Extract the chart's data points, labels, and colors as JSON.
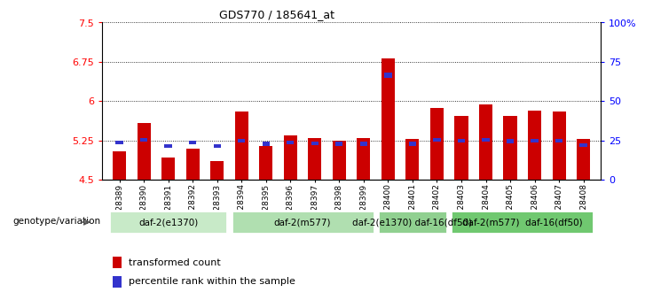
{
  "title": "GDS770 / 185641_at",
  "samples": [
    "GSM28389",
    "GSM28390",
    "GSM28391",
    "GSM28392",
    "GSM28393",
    "GSM28394",
    "GSM28395",
    "GSM28396",
    "GSM28397",
    "GSM28398",
    "GSM28399",
    "GSM28400",
    "GSM28401",
    "GSM28402",
    "GSM28403",
    "GSM28404",
    "GSM28405",
    "GSM28406",
    "GSM28407",
    "GSM28408"
  ],
  "red_values": [
    5.05,
    5.58,
    4.92,
    5.1,
    4.85,
    5.8,
    5.15,
    5.35,
    5.3,
    5.25,
    5.3,
    6.82,
    5.28,
    5.87,
    5.72,
    5.93,
    5.72,
    5.82,
    5.8,
    5.27
  ],
  "blue_top": [
    5.25,
    5.3,
    5.18,
    5.25,
    5.18,
    5.28,
    5.22,
    5.24,
    5.23,
    5.22,
    5.22,
    6.55,
    5.22,
    5.3,
    5.28,
    5.3,
    5.27,
    5.28,
    5.28,
    5.2
  ],
  "blue_height": [
    0.07,
    0.07,
    0.07,
    0.07,
    0.07,
    0.07,
    0.07,
    0.07,
    0.07,
    0.07,
    0.07,
    0.1,
    0.07,
    0.07,
    0.07,
    0.07,
    0.07,
    0.07,
    0.07,
    0.07
  ],
  "ymin": 4.5,
  "ymax": 7.5,
  "yticks": [
    4.5,
    5.25,
    6.0,
    6.75,
    7.5
  ],
  "ytick_labels": [
    "4.5",
    "5.25",
    "6",
    "6.75",
    "7.5"
  ],
  "right_yticks": [
    0,
    25,
    50,
    75,
    100
  ],
  "right_ytick_labels": [
    "0",
    "25",
    "50",
    "75",
    "100%"
  ],
  "groups": [
    {
      "label": "daf-2(e1370)",
      "start": 0,
      "end": 4,
      "color": "#c8eac8"
    },
    {
      "label": "daf-2(m577)",
      "start": 5,
      "end": 10,
      "color": "#b0dfb0"
    },
    {
      "label": "daf-2(e1370) daf-16(df50)",
      "start": 11,
      "end": 13,
      "color": "#90d090"
    },
    {
      "label": "daf-2(m577)  daf-16(df50)",
      "start": 14,
      "end": 19,
      "color": "#70c870"
    }
  ],
  "legend_items": [
    {
      "label": "transformed count",
      "color": "#cc0000"
    },
    {
      "label": "percentile rank within the sample",
      "color": "#3333cc"
    }
  ],
  "bar_color": "#cc0000",
  "blue_color": "#3333cc",
  "genotype_label": "genotype/variation",
  "bar_width": 0.55,
  "base_value": 4.5
}
